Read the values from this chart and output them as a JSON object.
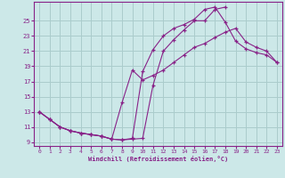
{
  "xlabel": "Windchill (Refroidissement éolien,°C)",
  "bg_color": "#cce8e8",
  "grid_color": "#aacccc",
  "line_color": "#882288",
  "xlim": [
    -0.5,
    23.5
  ],
  "ylim": [
    8.5,
    27.5
  ],
  "xticks": [
    0,
    1,
    2,
    3,
    4,
    5,
    6,
    7,
    8,
    9,
    10,
    11,
    12,
    13,
    14,
    15,
    16,
    17,
    18,
    19,
    20,
    21,
    22,
    23
  ],
  "yticks": [
    9,
    11,
    13,
    15,
    17,
    19,
    21,
    23,
    25
  ],
  "line1_x": [
    0,
    1,
    2,
    3,
    4,
    5,
    6,
    7,
    8,
    9,
    10,
    11,
    12,
    13,
    14,
    15,
    16,
    17,
    18
  ],
  "line1_y": [
    13.0,
    12.0,
    11.0,
    10.5,
    10.2,
    10.0,
    9.8,
    9.4,
    9.3,
    9.4,
    9.5,
    16.5,
    21.0,
    22.5,
    23.8,
    25.0,
    25.0,
    26.5,
    26.8
  ],
  "line2_x": [
    0,
    1,
    2,
    3,
    4,
    5,
    6,
    7,
    8,
    9,
    10,
    11,
    12,
    13,
    14,
    15,
    16,
    17,
    18,
    19,
    20,
    21,
    22,
    23
  ],
  "line2_y": [
    13.0,
    12.0,
    11.0,
    10.5,
    10.2,
    10.0,
    9.8,
    9.4,
    9.3,
    9.5,
    18.3,
    21.2,
    23.0,
    24.0,
    24.5,
    25.2,
    26.5,
    26.8,
    24.8,
    22.3,
    21.3,
    20.8,
    20.5,
    19.5
  ],
  "line3_x": [
    0,
    1,
    2,
    3,
    4,
    5,
    6,
    7,
    8,
    9,
    10,
    11,
    12,
    13,
    14,
    15,
    16,
    17,
    18,
    19,
    20,
    21,
    22,
    23
  ],
  "line3_y": [
    13.0,
    12.0,
    11.0,
    10.5,
    10.2,
    10.0,
    9.8,
    9.4,
    14.2,
    18.5,
    17.2,
    17.8,
    18.5,
    19.5,
    20.5,
    21.5,
    22.0,
    22.8,
    23.5,
    24.0,
    22.2,
    21.5,
    21.0,
    19.5
  ]
}
